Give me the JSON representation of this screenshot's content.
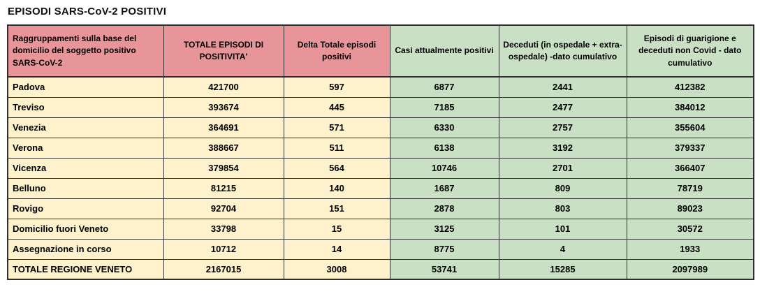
{
  "page": {
    "title": "EPISODI SARS-CoV-2 POSITIVI"
  },
  "theme": {
    "header_left_bg": "#e89599",
    "header_right_bg": "#c9e0c4",
    "body_left_bg": "#fdf2cb",
    "body_right_bg": "#c9e0c4",
    "border_color": "#2f2f2f",
    "text_color": "#000000"
  },
  "table": {
    "columns": [
      {
        "id": "raggruppamenti-domicilio",
        "label": "Raggruppamenti sulla base del domicilio del soggetto positivo SARS-CoV-2",
        "group": "pink",
        "align": "left"
      },
      {
        "id": "totale-episodi-positivita",
        "label": "TOTALE EPISODI DI POSITIVITA'",
        "group": "pink",
        "align": "center"
      },
      {
        "id": "delta-totale-episodi",
        "label": "Delta Totale episodi positivi",
        "group": "pink",
        "align": "center"
      },
      {
        "id": "casi-attualmente-positivi",
        "label": "Casi attualmente positivi",
        "group": "green",
        "align": "center"
      },
      {
        "id": "deceduti-cumulativo",
        "label": "Deceduti (in ospedale + extra-ospedale) -dato cumulativo",
        "group": "green",
        "align": "center"
      },
      {
        "id": "guarigione-deceduti-non-covid",
        "label": "Episodi di guarigione e deceduti non Covid - dato cumulativo",
        "group": "green",
        "align": "center"
      }
    ],
    "rows": [
      {
        "label": "Padova",
        "values": [
          "421700",
          "597",
          "6877",
          "2441",
          "412382"
        ],
        "is_total": false
      },
      {
        "label": "Treviso",
        "values": [
          "393674",
          "445",
          "7185",
          "2477",
          "384012"
        ],
        "is_total": false
      },
      {
        "label": "Venezia",
        "values": [
          "364691",
          "571",
          "6330",
          "2757",
          "355604"
        ],
        "is_total": false
      },
      {
        "label": "Verona",
        "values": [
          "388667",
          "511",
          "6138",
          "3192",
          "379337"
        ],
        "is_total": false
      },
      {
        "label": "Vicenza",
        "values": [
          "379854",
          "564",
          "10746",
          "2701",
          "366407"
        ],
        "is_total": false
      },
      {
        "label": "Belluno",
        "values": [
          "81215",
          "140",
          "1687",
          "809",
          "78719"
        ],
        "is_total": false
      },
      {
        "label": "Rovigo",
        "values": [
          "92704",
          "151",
          "2878",
          "803",
          "89023"
        ],
        "is_total": false
      },
      {
        "label": "Domicilio fuori Veneto",
        "values": [
          "33798",
          "15",
          "3125",
          "101",
          "30572"
        ],
        "is_total": false
      },
      {
        "label": "Assegnazione in corso",
        "values": [
          "10712",
          "14",
          "8775",
          "4",
          "1933"
        ],
        "is_total": false
      },
      {
        "label": "TOTALE REGIONE VENETO",
        "values": [
          "2167015",
          "3008",
          "53741",
          "15285",
          "2097989"
        ],
        "is_total": true
      }
    ]
  }
}
